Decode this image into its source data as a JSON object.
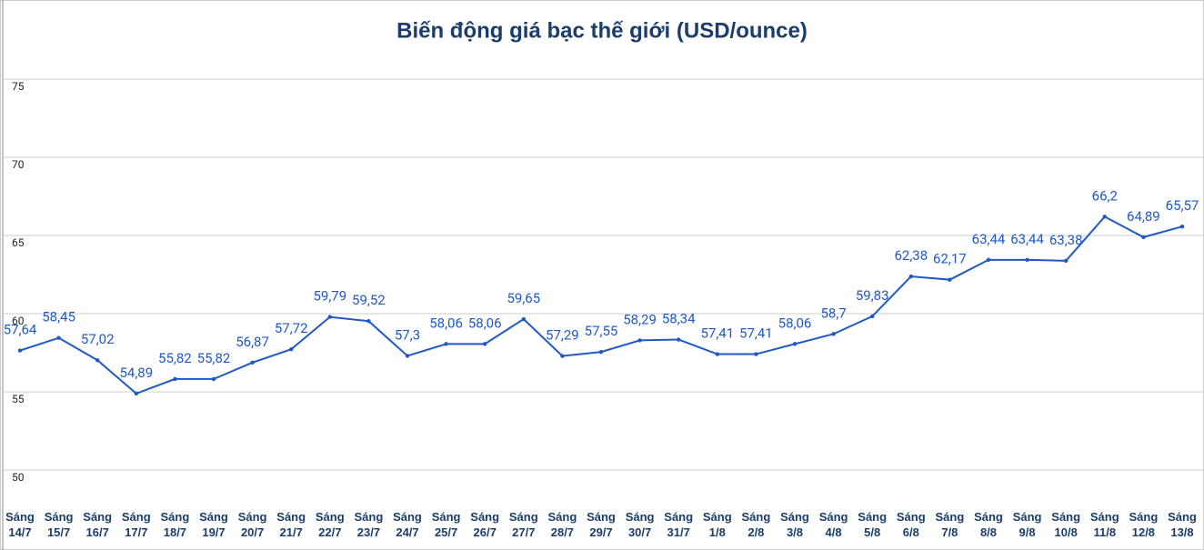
{
  "chart_data": {
    "type": "line",
    "title": "Biến động giá bạc thế giới (USD/ounce)",
    "categories": [
      "Sáng\n14/7",
      "Sáng\n15/7",
      "Sáng\n16/7",
      "Sáng\n17/7",
      "Sáng\n18/7",
      "Sáng\n19/7",
      "Sáng\n20/7",
      "Sáng\n21/7",
      "Sáng\n22/7",
      "Sáng\n23/7",
      "Sáng\n24/7",
      "Sáng\n25/7",
      "Sáng\n26/7",
      "Sáng\n27/7",
      "Sáng\n28/7",
      "Sáng\n29/7",
      "Sáng\n30/7",
      "Sáng\n31/7",
      "Sáng\n1/8",
      "Sáng\n2/8",
      "Sáng\n3/8",
      "Sáng\n4/8",
      "Sáng\n5/8",
      "Sáng\n6/8",
      "Sáng\n7/8",
      "Sáng\n8/8",
      "Sáng\n9/8",
      "Sáng\n10/8",
      "Sáng\n11/8",
      "Sáng\n12/8",
      "Sáng\n13/8"
    ],
    "values": [
      57.64,
      58.45,
      57.02,
      54.89,
      55.82,
      55.82,
      56.87,
      57.72,
      59.79,
      59.52,
      57.3,
      58.06,
      58.06,
      59.65,
      57.29,
      57.55,
      58.29,
      58.34,
      57.41,
      57.41,
      58.06,
      58.7,
      59.83,
      62.38,
      62.17,
      63.44,
      63.44,
      63.38,
      66.2,
      64.89,
      65.57
    ],
    "value_labels": [
      "57,64",
      "58,45",
      "57,02",
      "54,89",
      "55,82",
      "55,82",
      "56,87",
      "57,72",
      "59,79",
      "59,52",
      "57,3",
      "58,06",
      "58,06",
      "59,65",
      "57,29",
      "57,55",
      "58,29",
      "58,34",
      "57,41",
      "57,41",
      "58,06",
      "58,7",
      "59,83",
      "62,38",
      "62,17",
      "63,44",
      "63,44",
      "63,38",
      "66,2",
      "64,89",
      "65,57"
    ],
    "color": "#1f58c7",
    "ylim": [
      50,
      80
    ],
    "yticks": [
      50,
      55,
      60,
      65,
      70,
      75
    ],
    "grid": true
  }
}
